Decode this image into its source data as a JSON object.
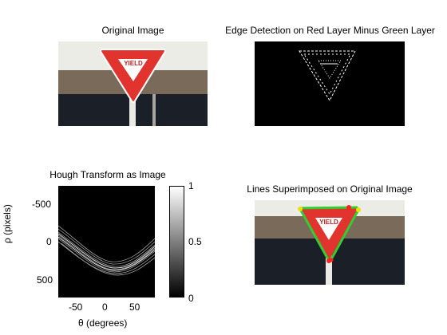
{
  "figure": {
    "panel1": {
      "title": "Original Image"
    },
    "panel2": {
      "title": "Edge Detection on Red Layer Minus Green Layer"
    },
    "panel3": {
      "title": "Hough Transform as Image",
      "xlabel": "θ (degrees)",
      "ylabel": "ρ (pixels)",
      "xticks": [
        "-50",
        "0",
        "50"
      ],
      "yticks": [
        "-500",
        "0",
        "500"
      ]
    },
    "colorbar": {
      "ticks": [
        "1",
        "0.5",
        "0"
      ]
    },
    "panel4": {
      "title": "Lines Superimposed on Original Image"
    },
    "sign_text": "YIELD"
  },
  "chart_data": {
    "type": "heatmap",
    "title": "Hough Transform as Image",
    "xlabel": "θ (degrees)",
    "ylabel": "ρ (pixels)",
    "xlim": [
      -90,
      90
    ],
    "ylim": [
      750,
      -750
    ],
    "xticks": [
      -50,
      0,
      50
    ],
    "yticks": [
      -500,
      0,
      500
    ],
    "colorbar": {
      "range": [
        0,
        1
      ],
      "ticks": [
        0,
        0.5,
        1
      ],
      "colormap": "gray"
    }
  },
  "colors": {
    "sign_red": "#e2342f",
    "line_green": "#33cc33",
    "point_yellow": "#f0e000",
    "point_red": "#ff2020"
  }
}
